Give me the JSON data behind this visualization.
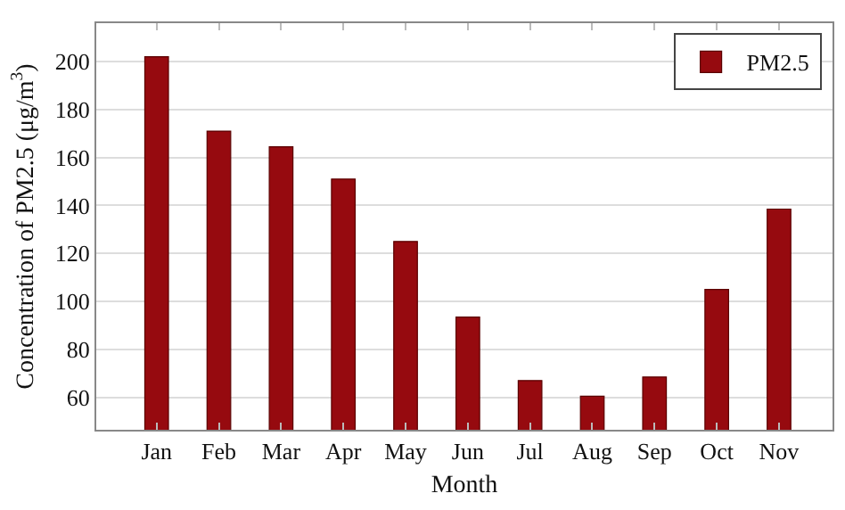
{
  "chart_data": {
    "type": "bar",
    "xlabel": "Month",
    "ylabel": "Concentration of PM2.5 (μg/m$^{3}$)",
    "categories": [
      "Jan",
      "Feb",
      "Mar",
      "Apr",
      "May",
      "Jun",
      "Jul",
      "Aug",
      "Sep",
      "Oct",
      "Nov"
    ],
    "series": [
      {
        "name": "PM2.5",
        "color": "#960a0f",
        "values": [
          202,
          171,
          164.5,
          151,
          125,
          93.5,
          67,
          60.5,
          68.5,
          105,
          138.5
        ]
      }
    ],
    "ylim": [
      46.5,
      216
    ],
    "yticks": [
      60,
      80,
      100,
      120,
      140,
      160,
      180,
      200
    ],
    "grid": "y",
    "legend": "top right"
  }
}
